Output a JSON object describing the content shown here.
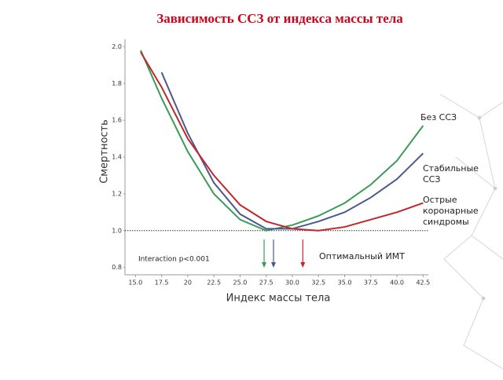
{
  "chart_data": {
    "type": "line",
    "title": "Зависимость ССЗ от индекса массы тела",
    "x_label": "Индекс массы тела",
    "y_label": "Смертность",
    "annotations": [
      "Interaction p<0.001",
      "Оптимальный ИМТ"
    ],
    "x": [
      15.5,
      17.5,
      20,
      22.5,
      25,
      27.5,
      30,
      32.5,
      35,
      37.5,
      40,
      42.5
    ],
    "series": [
      {
        "name": "Без ССЗ",
        "color": "#3a9a57",
        "values": [
          1.98,
          1.72,
          1.43,
          1.2,
          1.06,
          1.0,
          1.03,
          1.08,
          1.15,
          1.25,
          1.38,
          1.57
        ]
      },
      {
        "name": "Стабильные ССЗ",
        "color": "#4a5a8c",
        "values": [
          null,
          1.86,
          1.53,
          1.26,
          1.09,
          1.01,
          1.01,
          1.05,
          1.1,
          1.18,
          1.28,
          1.42
        ]
      },
      {
        "name": "Острые коронарные синдромы",
        "color": "#c0272d",
        "values": [
          1.97,
          1.78,
          1.5,
          1.3,
          1.14,
          1.05,
          1.01,
          1.0,
          1.02,
          1.06,
          1.1,
          1.15
        ]
      }
    ],
    "optimal_x": [
      27.3,
      28.2,
      31.0
    ],
    "reference_line": 1,
    "xlim": [
      14,
      43
    ],
    "ylim": [
      0.76,
      2.04
    ],
    "xticks": [
      {
        "value": 15,
        "label": "15.0"
      },
      17.5,
      20,
      22.5,
      {
        "value": 25,
        "label": "25.0"
      },
      27.5,
      {
        "value": 30,
        "label": "30.0"
      },
      32.5,
      {
        "value": 35,
        "label": "35.0"
      },
      37.5,
      {
        "value": 40,
        "label": "40.0"
      },
      42.5
    ],
    "yticks": [
      0.8,
      {
        "value": 1,
        "label": "1.0"
      },
      1.2,
      1.4,
      1.6,
      1.8,
      {
        "value": 2,
        "label": "2.0"
      }
    ]
  }
}
